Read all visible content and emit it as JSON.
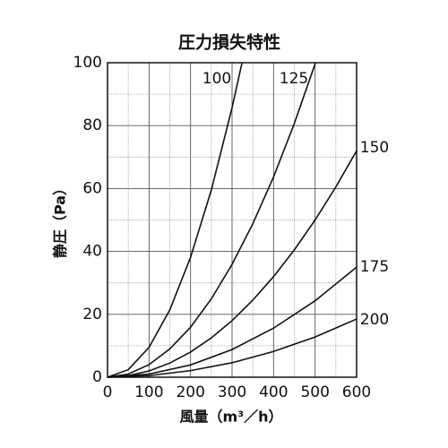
{
  "chart_data": {
    "type": "line",
    "title": "圧力損失特性",
    "x_label": "風量（m³／h）",
    "y_label": "静圧（Pa）",
    "xlim": [
      0,
      600
    ],
    "ylim": [
      0,
      100
    ],
    "xticks": [
      0,
      100,
      200,
      300,
      400,
      500,
      600
    ],
    "yticks": [
      0,
      20,
      40,
      60,
      80,
      100
    ],
    "xminor": [
      50,
      150,
      250,
      350,
      450,
      550
    ],
    "yminor": [
      10,
      30,
      50,
      70,
      90
    ],
    "grid": true,
    "color": "#111111",
    "series": [
      {
        "name": "100",
        "x": [
          0,
          50,
          100,
          150,
          200,
          250,
          300,
          324
        ],
        "values": [
          0,
          2.4,
          9.5,
          21.4,
          38.1,
          59.5,
          85.7,
          100
        ]
      },
      {
        "name": "125",
        "x": [
          0,
          50,
          100,
          150,
          200,
          250,
          300,
          350,
          400,
          450,
          501
        ],
        "values": [
          0,
          1.0,
          4.0,
          9.0,
          15.9,
          24.9,
          35.9,
          48.8,
          63.7,
          80.7,
          100
        ]
      },
      {
        "name": "150",
        "x": [
          0,
          50,
          100,
          150,
          200,
          250,
          300,
          350,
          400,
          450,
          500,
          550,
          600
        ],
        "values": [
          0,
          0.5,
          2,
          4.5,
          8,
          12.5,
          18,
          24.5,
          32,
          40.5,
          50,
          60.5,
          72
        ]
      },
      {
        "name": "175",
        "x": [
          0,
          100,
          200,
          300,
          400,
          500,
          600
        ],
        "values": [
          0,
          1.0,
          3.9,
          8.8,
          15.6,
          24.3,
          35
        ]
      },
      {
        "name": "200",
        "x": [
          0,
          100,
          200,
          300,
          400,
          500,
          600
        ],
        "values": [
          0,
          0.5,
          2.1,
          4.6,
          8.2,
          12.8,
          18.5
        ]
      }
    ]
  }
}
